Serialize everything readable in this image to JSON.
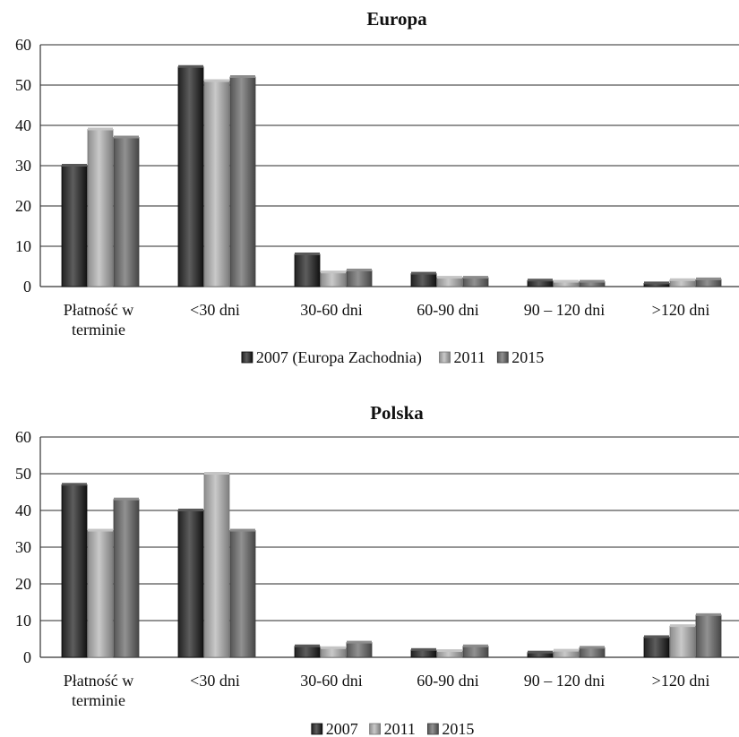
{
  "chart_data": [
    {
      "type": "bar",
      "title": "Europa",
      "categories": [
        "Płatność w terminie",
        "<30 dni",
        "30-60 dni",
        "60-90 dni",
        "90 – 120 dni",
        ">120 dni"
      ],
      "category_lines": [
        [
          "Płatność w",
          "terminie"
        ],
        [
          "<30 dni"
        ],
        [
          "30-60 dni"
        ],
        [
          "60-90 dni"
        ],
        [
          "90 – 120 dni"
        ],
        [
          ">120 dni"
        ]
      ],
      "series": [
        {
          "name": "2007 (Europa Zachodnia)",
          "values": [
            30,
            54.5,
            8,
            3.2,
            1.5,
            0.8
          ]
        },
        {
          "name": "2011",
          "values": [
            39,
            51,
            3.5,
            2.2,
            1.2,
            1.6
          ]
        },
        {
          "name": "2015",
          "values": [
            37,
            52,
            4,
            2.2,
            1.2,
            1.8
          ]
        }
      ],
      "ylim": [
        0,
        60
      ],
      "yticks": [
        0,
        10,
        20,
        30,
        40,
        50,
        60
      ],
      "grid": true,
      "legend_position": "bottom",
      "colors": [
        "#3a3a3a",
        "#a6a6a6",
        "#6e6e6e"
      ]
    },
    {
      "type": "bar",
      "title": "Polska",
      "categories": [
        "Płatność w terminie",
        "<30 dni",
        "30-60 dni",
        "60-90 dni",
        "90 – 120 dni",
        ">120 dni"
      ],
      "category_lines": [
        [
          "Płatność w",
          "terminie"
        ],
        [
          "<30 dni"
        ],
        [
          "30-60 dni"
        ],
        [
          "60-90 dni"
        ],
        [
          "90 – 120 dni"
        ],
        [
          ">120 dni"
        ]
      ],
      "series": [
        {
          "name": "2007",
          "values": [
            47,
            40,
            3,
            2,
            1.3,
            5.5
          ]
        },
        {
          "name": "2011",
          "values": [
            34.5,
            50,
            2.5,
            1.7,
            1.8,
            8.5
          ]
        },
        {
          "name": "2015",
          "values": [
            43,
            34.5,
            4,
            3,
            2.6,
            11.5
          ]
        }
      ],
      "ylim": [
        0,
        60
      ],
      "yticks": [
        0,
        10,
        20,
        30,
        40,
        50,
        60
      ],
      "grid": true,
      "legend_position": "bottom",
      "colors": [
        "#3a3a3a",
        "#a6a6a6",
        "#6e6e6e"
      ]
    }
  ]
}
